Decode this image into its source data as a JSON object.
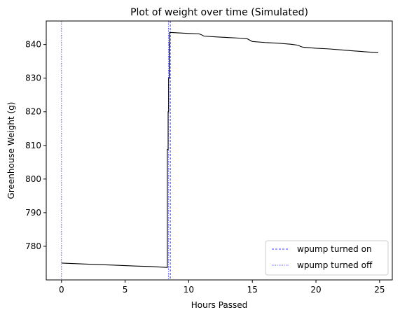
{
  "chart_data": {
    "type": "line",
    "title": "Plot of weight over time (Simulated)",
    "xlabel": "Hours Passed",
    "ylabel": "Greenhouse Weight (g)",
    "xlim": [
      -1.2,
      26.0
    ],
    "ylim": [
      770.0,
      847.0
    ],
    "xticks": [
      0,
      5,
      10,
      15,
      20,
      25
    ],
    "yticks": [
      780,
      790,
      800,
      810,
      820,
      830,
      840
    ],
    "grid": false,
    "legend_position": "lower-right",
    "series": [
      {
        "color": "#000000",
        "x": [
          0,
          2,
          4,
          6,
          7,
          8.3,
          8.32,
          8.32,
          8.38,
          8.38,
          8.42,
          8.42,
          8.47,
          8.47,
          8.5,
          8.5,
          9,
          10,
          10.8,
          11,
          11.2,
          12,
          13,
          14,
          14.6,
          14.8,
          15,
          16,
          17,
          18,
          18.6,
          18.8,
          19,
          20,
          21,
          22,
          23,
          24,
          24.9
        ],
        "y": [
          775.0,
          774.7,
          774.4,
          774.1,
          774.0,
          773.7,
          773.7,
          808.8,
          808.8,
          820.0,
          820.0,
          830.0,
          830.0,
          840.0,
          840.0,
          843.6,
          843.5,
          843.3,
          843.2,
          842.9,
          842.5,
          842.3,
          842.1,
          841.9,
          841.7,
          841.3,
          840.9,
          840.6,
          840.4,
          840.1,
          839.8,
          839.4,
          839.2,
          838.9,
          838.7,
          838.4,
          838.1,
          837.8,
          837.6
        ]
      }
    ],
    "vlines": [
      {
        "name": "wpump turned on",
        "x": [
          8.55
        ],
        "color": "#0000ff",
        "style": "dashed"
      },
      {
        "name": "wpump turned off",
        "x": [
          0,
          8.4
        ],
        "color": "#0000ff",
        "style": "dotted"
      }
    ]
  }
}
